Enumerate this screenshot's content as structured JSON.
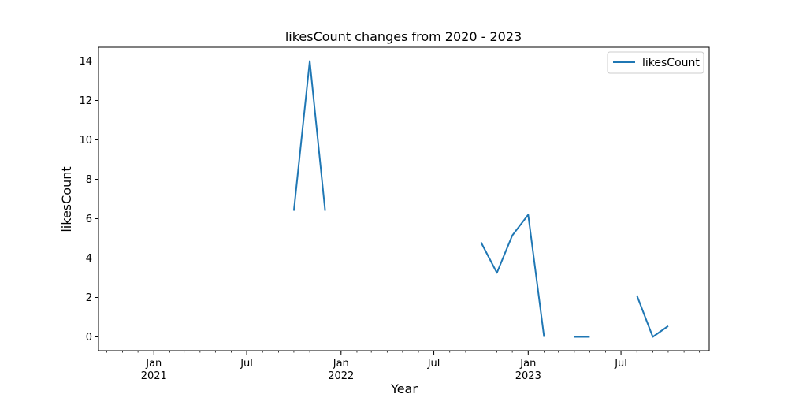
{
  "chart_data": {
    "type": "line",
    "title": "likesCount changes from 2020 - 2023",
    "xlabel": "Year",
    "ylabel": "likesCount",
    "xlim": [
      "2020-09-15",
      "2023-12-20"
    ],
    "ylim": [
      -0.7,
      14.7
    ],
    "y_ticks": [
      0,
      2,
      4,
      6,
      8,
      10,
      12,
      14
    ],
    "x_ticks": [
      {
        "date": "2021-01-01",
        "labels": [
          "Jan",
          "2021"
        ]
      },
      {
        "date": "2021-07-01",
        "labels": [
          "Jul"
        ]
      },
      {
        "date": "2022-01-01",
        "labels": [
          "Jan",
          "2022"
        ]
      },
      {
        "date": "2022-07-01",
        "labels": [
          "Jul"
        ]
      },
      {
        "date": "2023-01-01",
        "labels": [
          "Jan",
          "2023"
        ]
      },
      {
        "date": "2023-07-01",
        "labels": [
          "Jul"
        ]
      }
    ],
    "grid": false,
    "legend_position": "top-right",
    "series": [
      {
        "name": "likesCount",
        "color": "#1f77b4",
        "segments": [
          [
            [
              "2021-10-01",
              6.4
            ],
            [
              "2021-11-01",
              14.0
            ],
            [
              "2021-12-01",
              6.4
            ]
          ],
          [
            [
              "2022-10-01",
              4.8
            ],
            [
              "2022-11-01",
              3.25
            ],
            [
              "2022-12-01",
              5.15
            ],
            [
              "2023-01-01",
              6.2
            ],
            [
              "2023-02-01",
              0.0
            ]
          ],
          [
            [
              "2023-04-01",
              0.0
            ],
            [
              "2023-05-01",
              0.0
            ]
          ],
          [
            [
              "2023-08-01",
              2.1
            ],
            [
              "2023-09-01",
              0.0
            ],
            [
              "2023-10-01",
              0.55
            ]
          ]
        ]
      }
    ]
  }
}
